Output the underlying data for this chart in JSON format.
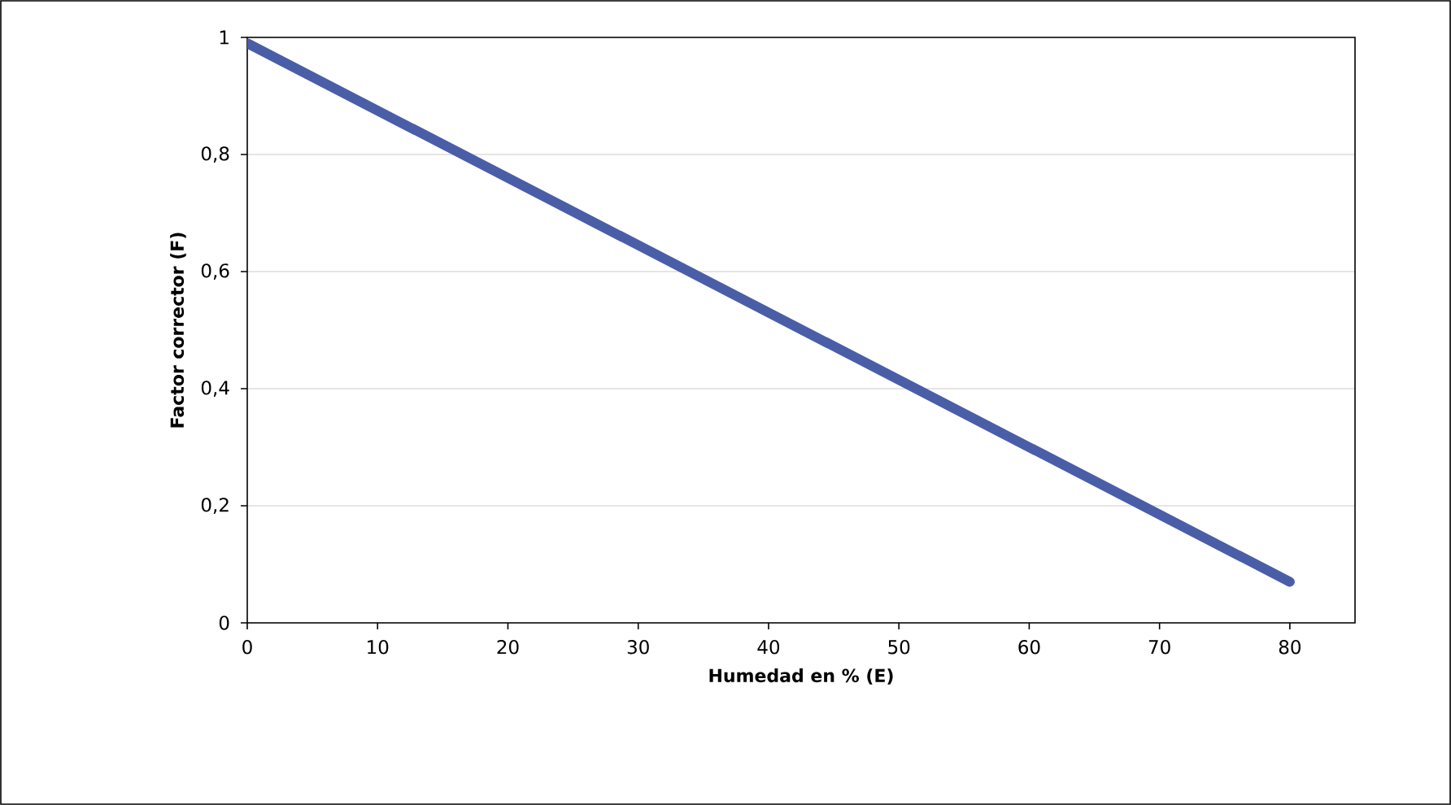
{
  "chart_data": {
    "type": "line",
    "xlabel": "Humedad en % (E)",
    "ylabel": "Factor corrector (F)",
    "x": [
      0,
      80
    ],
    "series": [
      {
        "color": "#4a5ea8",
        "values": [
          0.99,
          0.07
        ]
      }
    ],
    "xlim": [
      0,
      85
    ],
    "ylim": [
      0,
      1
    ],
    "xticks": [
      0,
      10,
      20,
      30,
      40,
      50,
      60,
      70,
      80
    ],
    "yticks": [
      0,
      {
        "value": 0.2,
        "label": "0,2"
      },
      {
        "value": 0.4,
        "label": "0,4"
      },
      {
        "value": 0.6,
        "label": "0,6"
      },
      {
        "value": 0.8,
        "label": "0,8"
      },
      1
    ],
    "grid": "y"
  }
}
